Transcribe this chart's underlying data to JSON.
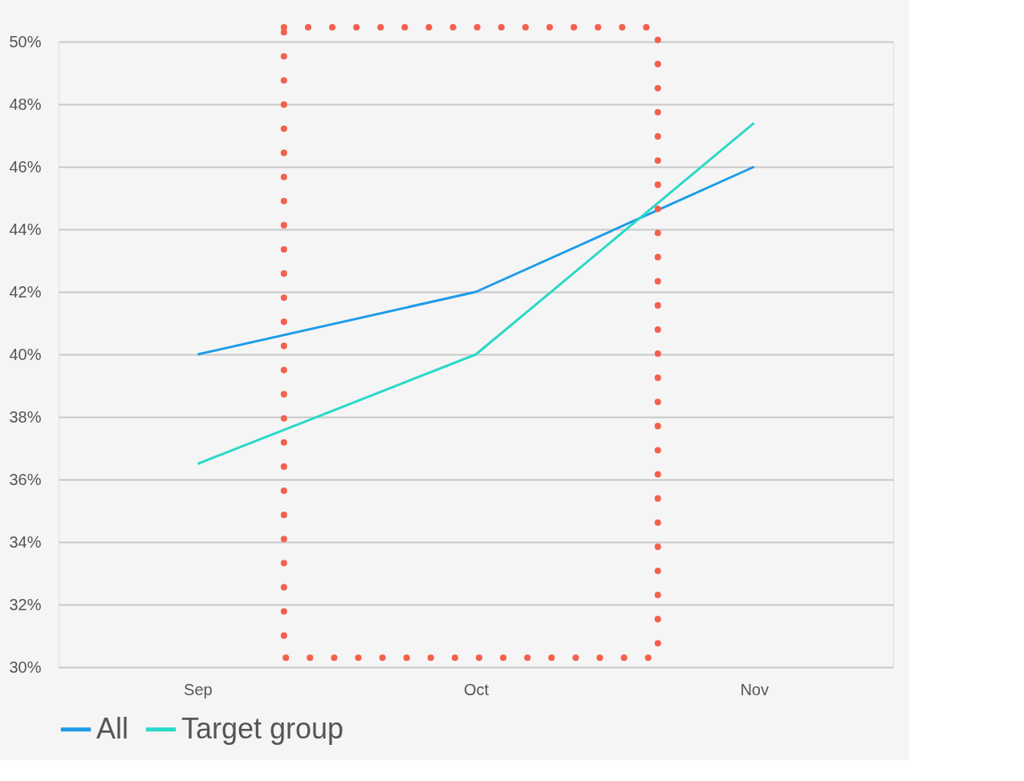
{
  "chart_data": {
    "type": "line",
    "categories": [
      "Sep",
      "Oct",
      "Nov"
    ],
    "series": [
      {
        "name": "All",
        "color": "#1e9be8",
        "values": [
          40,
          42,
          46
        ]
      },
      {
        "name": "Target group",
        "color": "#2ad9c8",
        "values": [
          36.5,
          40,
          47.4
        ]
      }
    ],
    "ylim": [
      30,
      50
    ],
    "yticks": [
      {
        "value": 30,
        "label": "30%"
      },
      {
        "value": 32,
        "label": "32%"
      },
      {
        "value": 34,
        "label": "34%"
      },
      {
        "value": 36,
        "label": "36%"
      },
      {
        "value": 38,
        "label": "38%"
      },
      {
        "value": 40,
        "label": "40%"
      },
      {
        "value": 42,
        "label": "42%"
      },
      {
        "value": 44,
        "label": "44%"
      },
      {
        "value": 46,
        "label": "46%"
      },
      {
        "value": 48,
        "label": "48%"
      },
      {
        "value": 50,
        "label": "50%"
      }
    ],
    "grid": "y",
    "legend": "bottom",
    "marker": "none",
    "line_style": "solid"
  }
}
